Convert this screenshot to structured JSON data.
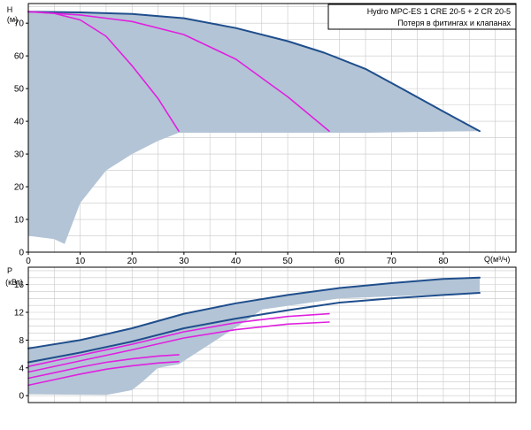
{
  "colors": {
    "area": "#b3c4d6",
    "main_curve": "#1f4e8c",
    "pink_curve": "#e020e0",
    "grid": "#c8c8c8",
    "frame": "#000000"
  },
  "legend": {
    "line1": "Hydro MPC-ES 1 CRE 20-5  +  2 CR 20-5",
    "line2": "Потеря в фитингах и клапанах"
  },
  "chart_data": [
    {
      "type": "line",
      "ylabel_line1": "H",
      "ylabel_line2": "(м)",
      "xlabel": "Q(м³/ч)",
      "xlim": [
        0,
        94
      ],
      "ylim": [
        0,
        76
      ],
      "xticks": [
        0,
        10,
        20,
        30,
        40,
        50,
        60,
        70,
        80
      ],
      "yticks": [
        0,
        10,
        20,
        30,
        40,
        50,
        60,
        70
      ],
      "grid": true,
      "area_polygon": [
        [
          0,
          73.5
        ],
        [
          20,
          72.8
        ],
        [
          30,
          71.5
        ],
        [
          40,
          68.5
        ],
        [
          50,
          64.5
        ],
        [
          57,
          61
        ],
        [
          65,
          56
        ],
        [
          72,
          50
        ],
        [
          80,
          43
        ],
        [
          87,
          37
        ],
        [
          65,
          36.5
        ],
        [
          29,
          36.5
        ],
        [
          25,
          34
        ],
        [
          20,
          30
        ],
        [
          15,
          25
        ],
        [
          10,
          15
        ],
        [
          7,
          2.5
        ],
        [
          5,
          4
        ],
        [
          0,
          5
        ]
      ],
      "series": [
        {
          "role": "main",
          "x": [
            0,
            10,
            20,
            30,
            40,
            50,
            57,
            65,
            72,
            80,
            87
          ],
          "y": [
            73.5,
            73.3,
            72.8,
            71.5,
            68.5,
            64.5,
            61,
            56,
            50,
            43,
            37
          ]
        },
        {
          "role": "pink",
          "x": [
            0,
            5,
            10,
            15,
            20,
            25,
            29
          ],
          "y": [
            73.5,
            73,
            71,
            66,
            57,
            47,
            37
          ]
        },
        {
          "role": "pink",
          "x": [
            0,
            10,
            20,
            30,
            40,
            50,
            58
          ],
          "y": [
            73.5,
            72.5,
            70.5,
            66.5,
            59,
            47.5,
            37
          ]
        }
      ]
    },
    {
      "type": "line",
      "ylabel_line1": "P",
      "ylabel_line2": "(кВт)",
      "xlim": [
        0,
        94
      ],
      "ylim": [
        -1,
        18.5
      ],
      "yticks": [
        0,
        4,
        8,
        12,
        16
      ],
      "grid": true,
      "area_polygon": [
        [
          0,
          6.8
        ],
        [
          10,
          8
        ],
        [
          20,
          9.7
        ],
        [
          30,
          11.8
        ],
        [
          40,
          13.3
        ],
        [
          50,
          14.5
        ],
        [
          60,
          15.5
        ],
        [
          70,
          16.2
        ],
        [
          80,
          16.8
        ],
        [
          87,
          17
        ],
        [
          87,
          14.8
        ],
        [
          60,
          14
        ],
        [
          45,
          12.4
        ],
        [
          42,
          10.8
        ],
        [
          30,
          5
        ],
        [
          29,
          4.5
        ],
        [
          25,
          4
        ],
        [
          22,
          2
        ],
        [
          20,
          0.8
        ],
        [
          15,
          0.1
        ],
        [
          0,
          0.2
        ]
      ],
      "series": [
        {
          "role": "main",
          "x": [
            0,
            10,
            20,
            30,
            40,
            50,
            60,
            70,
            80,
            87
          ],
          "y": [
            6.8,
            8,
            9.7,
            11.8,
            13.3,
            14.5,
            15.5,
            16.2,
            16.8,
            17
          ]
        },
        {
          "role": "main",
          "x": [
            0,
            10,
            20,
            30,
            40,
            50,
            60,
            70,
            80,
            87
          ],
          "y": [
            4.8,
            6.2,
            7.8,
            9.7,
            11.1,
            12.3,
            13.4,
            14,
            14.5,
            14.8
          ]
        },
        {
          "role": "pink",
          "x": [
            0,
            10,
            20,
            30,
            40,
            50,
            58
          ],
          "y": [
            4.2,
            5.8,
            7.4,
            9.2,
            10.5,
            11.4,
            11.8
          ]
        },
        {
          "role": "pink",
          "x": [
            0,
            10,
            20,
            30,
            40,
            50,
            58
          ],
          "y": [
            3.4,
            5,
            6.6,
            8.3,
            9.5,
            10.3,
            10.6
          ]
        },
        {
          "role": "pink",
          "x": [
            0,
            5,
            10,
            15,
            20,
            25,
            29
          ],
          "y": [
            2.5,
            3.3,
            4.1,
            4.8,
            5.3,
            5.7,
            5.9
          ]
        },
        {
          "role": "pink",
          "x": [
            0,
            5,
            10,
            15,
            20,
            25,
            29
          ],
          "y": [
            1.5,
            2.3,
            3.1,
            3.8,
            4.3,
            4.7,
            4.9
          ]
        }
      ]
    }
  ]
}
